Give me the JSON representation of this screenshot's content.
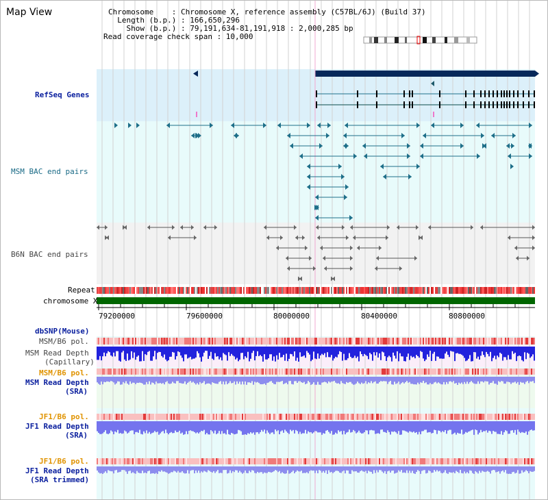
{
  "header": {
    "title": "Map View",
    "lines": [
      "Chromosome    : Chromosome X, reference assembly (C57BL/6J) (Build 37)",
      "  Length (b.p.) : 166,650,296",
      "    Show (b.p.) : 79,191,634-81,191,918 : 2,000,285 bp",
      "Read coverage check span : 10,000"
    ]
  },
  "tracks": {
    "refseq_label": "RefSeq Genes",
    "msm_bac_label": "MSM BAC end pairs",
    "b6n_bac_label": "B6N BAC end pairs",
    "repeat_label": "Repeat",
    "chromosome_label": "chromosome X",
    "dbsnp_label": "dbSNP(Mouse)",
    "msm_b6_pol_label": "MSM/B6 pol.",
    "msm_depth_cap_label1": "MSM Read Depth",
    "msm_depth_cap_label2": "(Capillary)",
    "msm_b6_pol2_label": "MSM/B6 pol.",
    "msm_depth_sra_label1": "MSM Read Depth",
    "msm_depth_sra_label2": "(SRA)",
    "jf1_pol_label": "JF1/B6 pol.",
    "jf1_depth_sra_label1": "JF1 Read Depth",
    "jf1_depth_sra_label2": "(SRA)",
    "jf1_pol2_label": "JF1/B6 pol.",
    "jf1_depth_trim_label1": "JF1 Read Depth",
    "jf1_depth_trim_label2": "(SRA trimmed)"
  },
  "axis": {
    "ticks": [
      "79200000",
      "79600000",
      "80000000",
      "80400000",
      "80800000"
    ]
  },
  "colors": {
    "refseq_bg": "#dcf0fa",
    "track_bg": "#e8fbfb",
    "b6n_bg": "#f2f2f2",
    "gene_navy": "#06285a",
    "bac_teal": "#1e6f89",
    "chromosome_green": "#006600",
    "depth_blue": "#2222dd",
    "depth_light": "#8d8dee"
  }
}
